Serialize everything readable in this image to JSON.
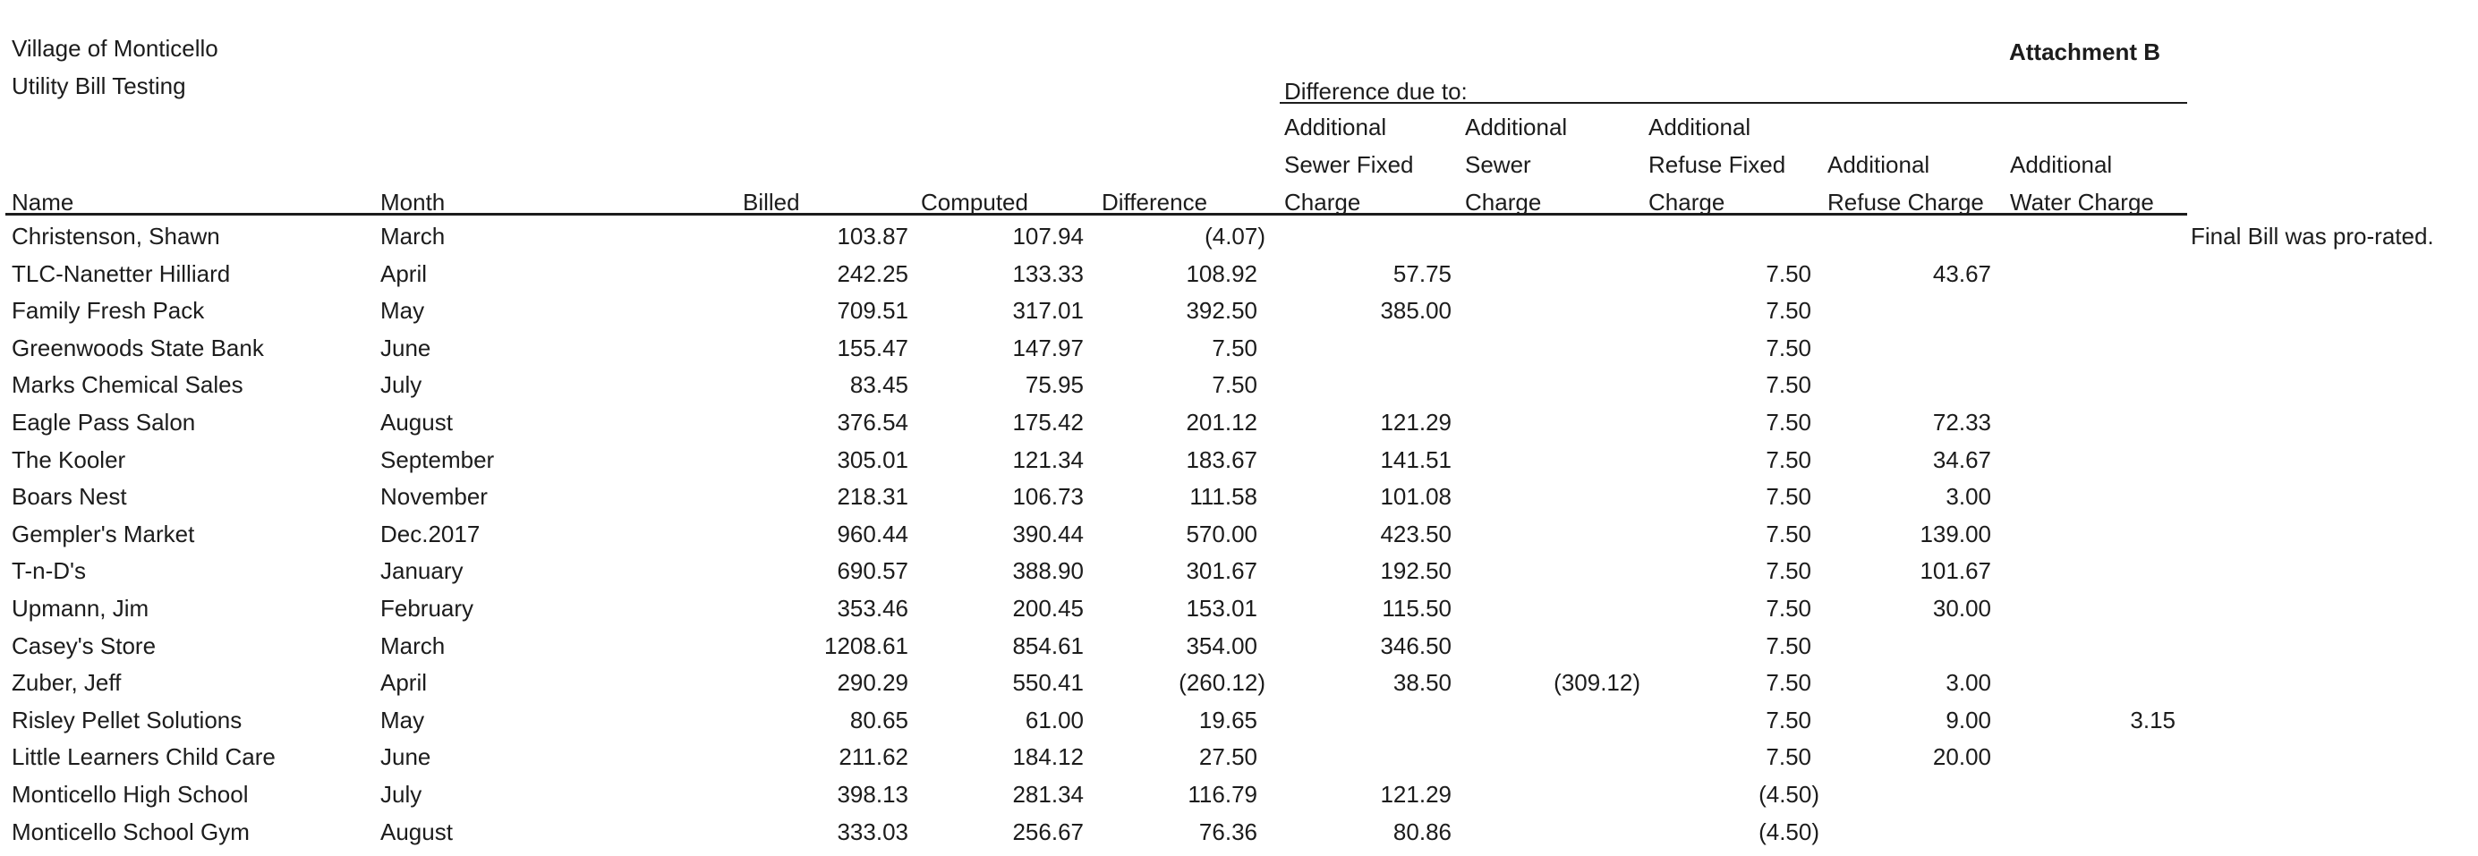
{
  "page": {
    "org_line1": "Village of Monticello",
    "org_line2": "Utility Bill Testing",
    "attachment": "Attachment B"
  },
  "table": {
    "group_header": "Difference due to:",
    "columns": {
      "name": "Name",
      "month": "Month",
      "billed": "Billed",
      "computed": "Computed",
      "difference": "Difference",
      "sewer_fixed": [
        "Additional",
        "Sewer Fixed",
        "Charge"
      ],
      "sewer": [
        "Additional",
        "Sewer",
        "Charge"
      ],
      "refuse_fixed": [
        "Additional",
        "Refuse Fixed",
        "Charge"
      ],
      "refuse": [
        "Additional",
        "Refuse Charge"
      ],
      "water": [
        "Additional",
        "Water Charge"
      ]
    },
    "rows": [
      {
        "name": "Christenson, Shawn",
        "month": "March",
        "billed": "103.87",
        "computed": "107.94",
        "difference": "(4.07)",
        "sewer_fixed": "",
        "sewer": "",
        "refuse_fixed": "",
        "refuse": "",
        "water": "",
        "note": "Final Bill was pro-rated."
      },
      {
        "name": "TLC-Nanetter Hilliard",
        "month": "April",
        "billed": "242.25",
        "computed": "133.33",
        "difference": "108.92",
        "sewer_fixed": "57.75",
        "sewer": "",
        "refuse_fixed": "7.50",
        "refuse": "43.67",
        "water": "",
        "note": ""
      },
      {
        "name": "Family Fresh Pack",
        "month": "May",
        "billed": "709.51",
        "computed": "317.01",
        "difference": "392.50",
        "sewer_fixed": "385.00",
        "sewer": "",
        "refuse_fixed": "7.50",
        "refuse": "",
        "water": "",
        "note": ""
      },
      {
        "name": "Greenwoods State Bank",
        "month": "June",
        "billed": "155.47",
        "computed": "147.97",
        "difference": "7.50",
        "sewer_fixed": "",
        "sewer": "",
        "refuse_fixed": "7.50",
        "refuse": "",
        "water": "",
        "note": ""
      },
      {
        "name": "Marks Chemical Sales",
        "month": "July",
        "billed": "83.45",
        "computed": "75.95",
        "difference": "7.50",
        "sewer_fixed": "",
        "sewer": "",
        "refuse_fixed": "7.50",
        "refuse": "",
        "water": "",
        "note": ""
      },
      {
        "name": "Eagle Pass Salon",
        "month": "August",
        "billed": "376.54",
        "computed": "175.42",
        "difference": "201.12",
        "sewer_fixed": "121.29",
        "sewer": "",
        "refuse_fixed": "7.50",
        "refuse": "72.33",
        "water": "",
        "note": ""
      },
      {
        "name": "The Kooler",
        "month": "September",
        "billed": "305.01",
        "computed": "121.34",
        "difference": "183.67",
        "sewer_fixed": "141.51",
        "sewer": "",
        "refuse_fixed": "7.50",
        "refuse": "34.67",
        "water": "",
        "note": ""
      },
      {
        "name": "Boars Nest",
        "month": "November",
        "billed": "218.31",
        "computed": "106.73",
        "difference": "111.58",
        "sewer_fixed": "101.08",
        "sewer": "",
        "refuse_fixed": "7.50",
        "refuse": "3.00",
        "water": "",
        "note": ""
      },
      {
        "name": "Gempler's Market",
        "month": "Dec.2017",
        "billed": "960.44",
        "computed": "390.44",
        "difference": "570.00",
        "sewer_fixed": "423.50",
        "sewer": "",
        "refuse_fixed": "7.50",
        "refuse": "139.00",
        "water": "",
        "note": ""
      },
      {
        "name": "T-n-D's",
        "month": "January",
        "billed": "690.57",
        "computed": "388.90",
        "difference": "301.67",
        "sewer_fixed": "192.50",
        "sewer": "",
        "refuse_fixed": "7.50",
        "refuse": "101.67",
        "water": "",
        "note": ""
      },
      {
        "name": "Upmann, Jim",
        "month": "February",
        "billed": "353.46",
        "computed": "200.45",
        "difference": "153.01",
        "sewer_fixed": "115.50",
        "sewer": "",
        "refuse_fixed": "7.50",
        "refuse": "30.00",
        "water": "",
        "note": ""
      },
      {
        "name": "Casey's Store",
        "month": "March",
        "billed": "1208.61",
        "computed": "854.61",
        "difference": "354.00",
        "sewer_fixed": "346.50",
        "sewer": "",
        "refuse_fixed": "7.50",
        "refuse": "",
        "water": "",
        "note": ""
      },
      {
        "name": "Zuber, Jeff",
        "month": "April",
        "billed": "290.29",
        "computed": "550.41",
        "difference": "(260.12)",
        "sewer_fixed": "38.50",
        "sewer": "(309.12)",
        "refuse_fixed": "7.50",
        "refuse": "3.00",
        "water": "",
        "note": ""
      },
      {
        "name": "Risley Pellet Solutions",
        "month": "May",
        "billed": "80.65",
        "computed": "61.00",
        "difference": "19.65",
        "sewer_fixed": "",
        "sewer": "",
        "refuse_fixed": "7.50",
        "refuse": "9.00",
        "water": "3.15",
        "note": ""
      },
      {
        "name": "Little Learners Child Care",
        "month": "June",
        "billed": "211.62",
        "computed": "184.12",
        "difference": "27.50",
        "sewer_fixed": "",
        "sewer": "",
        "refuse_fixed": "7.50",
        "refuse": "20.00",
        "water": "",
        "note": ""
      },
      {
        "name": "Monticello High School",
        "month": "July",
        "billed": "398.13",
        "computed": "281.34",
        "difference": "116.79",
        "sewer_fixed": "121.29",
        "sewer": "",
        "refuse_fixed": "(4.50)",
        "refuse": "",
        "water": "",
        "note": ""
      },
      {
        "name": "Monticello School Gym",
        "month": "August",
        "billed": "333.03",
        "computed": "256.67",
        "difference": "76.36",
        "sewer_fixed": "80.86",
        "sewer": "",
        "refuse_fixed": "(4.50)",
        "refuse": "",
        "water": "",
        "note": ""
      }
    ]
  }
}
